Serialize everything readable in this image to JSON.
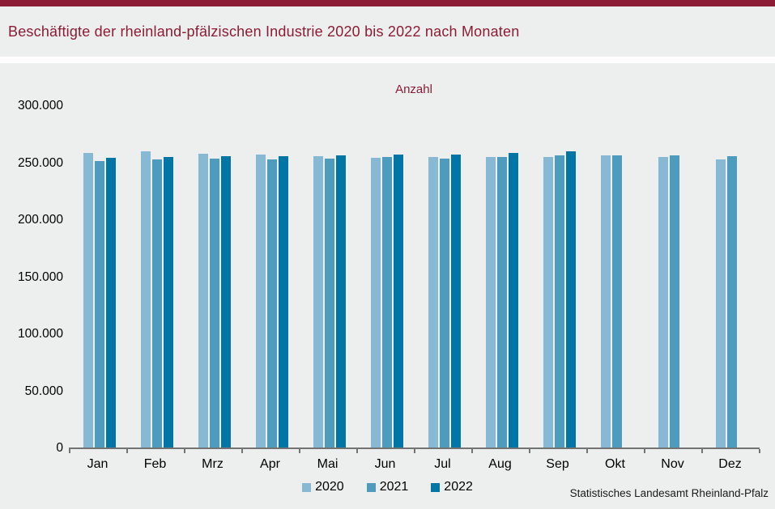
{
  "header": {
    "title": "Beschäftigte der rheinland-pfälzischen Industrie 2020 bis 2022 nach Monaten"
  },
  "source": "Statistisches Landesamt Rheinland-Pfalz",
  "colors": {
    "accent_maroon": "#8C1C35",
    "band_gray": "#EDEFEE",
    "axis_gray": "#737373"
  },
  "chart_data": {
    "type": "bar",
    "title": "Beschäftigte der rheinland-pfälzischen Industrie 2020 bis 2022 nach Monaten",
    "value_axis_label": "Anzahl",
    "categories": [
      "Jan",
      "Feb",
      "Mrz",
      "Apr",
      "Mai",
      "Jun",
      "Jul",
      "Aug",
      "Sep",
      "Okt",
      "Nov",
      "Dez"
    ],
    "series": [
      {
        "name": "2020",
        "color": "#88B9D4",
        "values": [
          259000,
          260000,
          258500,
          257500,
          256000,
          254500,
          255500,
          255000,
          255500,
          256500,
          255500,
          253500
        ]
      },
      {
        "name": "2021",
        "color": "#4D9CBE",
        "values": [
          252000,
          253000,
          254000,
          253500,
          254000,
          255000,
          254000,
          255000,
          256500,
          257000,
          257000,
          256000
        ]
      },
      {
        "name": "2022",
        "color": "#0075A6",
        "values": [
          254500,
          255500,
          256000,
          256000,
          256500,
          257500,
          257500,
          259000,
          260000,
          null,
          null,
          null
        ]
      }
    ],
    "ylim": [
      0,
      300000
    ],
    "ytick_step": 50000,
    "ytick_labels": [
      "0",
      "50.000",
      "100.000",
      "150.000",
      "200.000",
      "250.000",
      "300.000"
    ],
    "grid": false,
    "legend_position": "bottom"
  }
}
